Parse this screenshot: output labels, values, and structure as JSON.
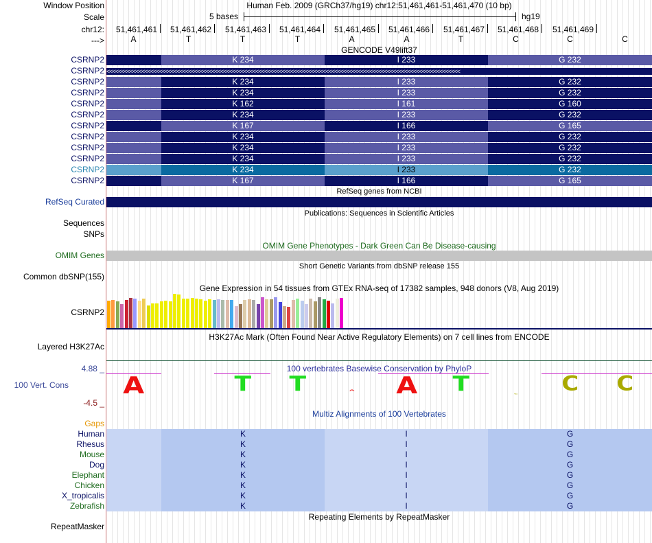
{
  "header": {
    "window_position_label": "Window Position",
    "window_position_text": "Human Feb. 2009 (GRCh37/hg19)   chr12:51,461,461-51,461,470 (10 bp)",
    "scale_label": "Scale",
    "scale_text": "5 bases",
    "scale_assembly": "hg19",
    "chrom_label": "chr12:",
    "strand_label": "--->"
  },
  "positions": [
    "51,461,461",
    "51,461,462",
    "51,461,463",
    "51,461,464",
    "51,461,465",
    "51,461,466",
    "51,461,467",
    "51,461,468",
    "51,461,469"
  ],
  "bases": [
    "A",
    "T",
    "T",
    "T",
    "A",
    "A",
    "T",
    "C",
    "C",
    "C"
  ],
  "gencode": {
    "title": "GENCODE V49lift37",
    "strand_glyphs": "<<<<<<<<<<<<<<<<<<<<<<<<<<<<<<<<<<<<<<<<<<<<<<<<<<<<<<<<<<<<<<<<<<<<<<<<<<<<<<<<<<<<<<<<<<<<<<<<<<<<<<<<<<<<<<<<<<<<<<<<<",
    "transcripts": [
      {
        "label": "CSRNP2",
        "type": "codon",
        "codons": [
          "K 234",
          "I 233",
          "G 232"
        ],
        "scheme": "a"
      },
      {
        "label": "CSRNP2",
        "type": "strand"
      },
      {
        "label": "CSRNP2",
        "type": "codon",
        "codons": [
          "K 234",
          "I 233",
          "G 232"
        ],
        "scheme": "b"
      },
      {
        "label": "CSRNP2",
        "type": "codon",
        "codons": [
          "K 234",
          "I 233",
          "G 232"
        ],
        "scheme": "b"
      },
      {
        "label": "CSRNP2",
        "type": "codon",
        "codons": [
          "K 162",
          "I 161",
          "G 160"
        ],
        "scheme": "b"
      },
      {
        "label": "CSRNP2",
        "type": "codon",
        "codons": [
          "K 234",
          "I 233",
          "G 232"
        ],
        "scheme": "b"
      },
      {
        "label": "CSRNP2",
        "type": "codon",
        "codons": [
          "K 167",
          "I 166",
          "G 165"
        ],
        "scheme": "a"
      },
      {
        "label": "CSRNP2",
        "type": "codon",
        "codons": [
          "K 234",
          "I 233",
          "G 232"
        ],
        "scheme": "b"
      },
      {
        "label": "CSRNP2",
        "type": "codon",
        "codons": [
          "K 234",
          "I 233",
          "G 232"
        ],
        "scheme": "b"
      },
      {
        "label": "CSRNP2",
        "type": "codon",
        "codons": [
          "K 234",
          "I 233",
          "G 232"
        ],
        "scheme": "b"
      },
      {
        "label": "CSRNP2",
        "type": "codon",
        "codons": [
          "K 234",
          "I 233",
          "G 232"
        ],
        "scheme": "highlight"
      },
      {
        "label": "CSRNP2",
        "type": "codon",
        "codons": [
          "K 167",
          "I 166",
          "G 165"
        ],
        "scheme": "a"
      }
    ]
  },
  "refseq": {
    "title": "RefSeq genes from NCBI",
    "label": "RefSeq Curated"
  },
  "publications": {
    "title": "Publications: Sequences in Scientific Articles",
    "sequences_label": "Sequences",
    "snps_label": "SNPs"
  },
  "omim": {
    "title": "OMIM Gene Phenotypes - Dark Green Can Be Disease-causing",
    "label": "OMIM Genes"
  },
  "dbsnp": {
    "title": "Short Genetic Variants from dbSNP release 155",
    "label": "Common dbSNP(155)"
  },
  "gtex": {
    "title": "Gene Expression in 54 tissues from GTEx RNA-seq of 17382 samples, 948 donors (V8, Aug 2019)",
    "label": "CSRNP2",
    "bar_heights": [
      0.8,
      0.82,
      0.78,
      0.7,
      0.82,
      0.88,
      0.86,
      0.8,
      0.85,
      0.66,
      0.72,
      0.72,
      0.78,
      0.8,
      0.78,
      1.0,
      0.98,
      0.86,
      0.86,
      0.88,
      0.86,
      0.84,
      0.8,
      0.84,
      0.82,
      0.84,
      0.82,
      0.82,
      0.82,
      0.64,
      0.7,
      0.82,
      0.84,
      0.82,
      0.7,
      0.9,
      0.84,
      0.84,
      0.9,
      0.76,
      0.64,
      0.62,
      0.82,
      0.86,
      0.8,
      0.7,
      0.86,
      0.78,
      0.9,
      0.84,
      0.8,
      0.72,
      0.86,
      0.88
    ],
    "bar_colors": [
      "#ffaa00",
      "#ff9a40",
      "#88aa55",
      "#cc66aa",
      "#cc2233",
      "#aa3344",
      "#9999ff",
      "#ffdd88",
      "#eecc55",
      "#dddd00",
      "#eeee00",
      "#eeee00",
      "#eeee00",
      "#eeee00",
      "#eeee00",
      "#eeee00",
      "#eeee00",
      "#eeee00",
      "#eeee00",
      "#eeee00",
      "#eeee00",
      "#eeee00",
      "#eeee00",
      "#eeee00",
      "#66bbcc",
      "#bbbbee",
      "#aabbaa",
      "#ddbbaa",
      "#44aaee",
      "#ddbbcc",
      "#997755",
      "#ddccaa",
      "#ddbb99",
      "#aaaaaa",
      "#7744aa",
      "#cc55cc",
      "#ddcc99",
      "#aa9966",
      "#9999ee",
      "#4444dd",
      "#ccaa88",
      "#dd4444",
      "#ddbbaa",
      "#99ee99",
      "#bbccee",
      "#ccccee",
      "#ccbbaa",
      "#aa9966",
      "#888888",
      "#22aa44",
      "#dd0000",
      "#bbbbee",
      "#eeeedd",
      "#ee00cc"
    ]
  },
  "h3k27ac": {
    "title": "H3K27Ac Mark (Often Found Near Active Regulatory Elements) on 7 cell lines from ENCODE",
    "label": "Layered H3K27Ac"
  },
  "conservation": {
    "title": "100 vertebrates Basewise Conservation by PhyloP",
    "label": "100 Vert. Cons",
    "max_label": "4.88 _",
    "min_label": "-4.5 _",
    "logo_letters": [
      "A",
      "",
      "T",
      "T",
      "A",
      "A",
      "T",
      "C",
      "C",
      "C"
    ],
    "logo_colors": [
      "#ee1111",
      "#00dd00",
      "#22dd22",
      "#22dd22",
      "#ee1111",
      "#ee1111",
      "#22dd22",
      "#aaaa00",
      "#aaaa00",
      "#aaaa00"
    ]
  },
  "multiz": {
    "title": "Multiz Alignments of 100 Vertebrates",
    "gaps_label": "Gaps",
    "species": [
      {
        "name": "Human",
        "aa": [
          "K",
          "I",
          "G"
        ],
        "color": "navy"
      },
      {
        "name": "Rhesus",
        "aa": [
          "K",
          "I",
          "G"
        ],
        "color": "navy"
      },
      {
        "name": "Mouse",
        "aa": [
          "K",
          "I",
          "G"
        ],
        "color": "green"
      },
      {
        "name": "Dog",
        "aa": [
          "K",
          "I",
          "G"
        ],
        "color": "navy"
      },
      {
        "name": "Elephant",
        "aa": [
          "K",
          "I",
          "G"
        ],
        "color": "green"
      },
      {
        "name": "Chicken",
        "aa": [
          "K",
          "I",
          "G"
        ],
        "color": "green"
      },
      {
        "name": "X_tropicalis",
        "aa": [
          "K",
          "I",
          "G"
        ],
        "color": "navy"
      },
      {
        "name": "Zebrafish",
        "aa": [
          "K",
          "I",
          "G"
        ],
        "color": "green"
      }
    ]
  },
  "repeatmasker": {
    "title": "Repeating Elements by RepeatMasker",
    "label": "RepeatMasker"
  }
}
